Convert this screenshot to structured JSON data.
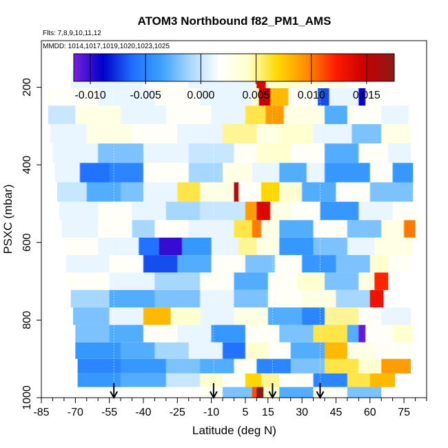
{
  "chart_data": {
    "type": "heatmap",
    "title": "ATOM3 Northbound f82_PM1_AMS",
    "flights_label": "Flts: 7,8,9,10,11,12",
    "dates_label": "MMDD: 1014,1017,1019,1020,1023,1025",
    "xlabel": "Latitude (deg N)",
    "ylabel": "PSXC (mbar)",
    "xlim": [
      -85,
      85
    ],
    "ylim": [
      1000,
      80
    ],
    "x_ticks": [
      -85,
      -70,
      -55,
      -40,
      -25,
      -10,
      5,
      15,
      30,
      45,
      60,
      75
    ],
    "y_ticks": [
      200,
      400,
      600,
      800,
      1000
    ],
    "colorbar": {
      "range": [
        -0.0115,
        0.0175
      ],
      "ticks": [
        -0.01,
        -0.005,
        0.0,
        0.005,
        0.01,
        0.015
      ],
      "tick_labels": [
        "-0.010",
        "-0.005",
        "0.000",
        "0.005",
        "0.010",
        "0.015"
      ],
      "colors": [
        "#7a1fe0",
        "#0000c8",
        "#1e6eff",
        "#3aa0ff",
        "#a8d8ff",
        "#ffffff",
        "#ffffc8",
        "#ffd700",
        "#ff8c00",
        "#ff1a00",
        "#c80000",
        "#8b1a1a"
      ]
    },
    "arrows_lat": [
      -53,
      -9,
      17,
      38
    ],
    "vertical_profiles": [
      {
        "lat": -53,
        "p_top": 960
      },
      {
        "lat": -9,
        "p_top": 960
      },
      {
        "lat": 17,
        "p_top": 960
      },
      {
        "lat": 38,
        "p_top": 960
      }
    ],
    "layers": [
      {
        "p": 180,
        "lat_min": -72,
        "lat_max": 62,
        "segments": [
          [
            -72,
            0.001
          ],
          [
            -40,
            0.002
          ],
          [
            -20,
            0.001
          ],
          [
            10,
            0.014
          ],
          [
            14,
            0.004
          ],
          [
            30,
            0.003
          ],
          [
            50,
            0.002
          ]
        ]
      },
      {
        "p": 225,
        "lat_min": -83,
        "lat_max": 64,
        "segments": [
          [
            -83,
            0.002
          ],
          [
            -60,
            0.001
          ],
          [
            -35,
            0.002
          ],
          [
            -15,
            0.001
          ],
          [
            8,
            0.004
          ],
          [
            11,
            0.015
          ],
          [
            16,
            0.008
          ],
          [
            24,
            0.002
          ],
          [
            37,
            -0.007
          ],
          [
            42,
            0.001
          ],
          [
            55,
            -0.009
          ],
          [
            58,
            0.002
          ]
        ]
      },
      {
        "p": 270,
        "lat_min": -82,
        "lat_max": 77,
        "segments": [
          [
            -82,
            0.0
          ],
          [
            -70,
            0.003
          ],
          [
            -50,
            0.001
          ],
          [
            -30,
            0.002
          ],
          [
            -10,
            0.001
          ],
          [
            5,
            0.006
          ],
          [
            14,
            0.009
          ],
          [
            22,
            0.003
          ],
          [
            40,
            -0.003
          ],
          [
            50,
            0.002
          ],
          [
            65,
            0.001
          ]
        ]
      },
      {
        "p": 320,
        "lat_min": -81,
        "lat_max": 78,
        "segments": [
          [
            -81,
            0.001
          ],
          [
            -65,
            0.003
          ],
          [
            -45,
            0.002
          ],
          [
            -25,
            0.001
          ],
          [
            -5,
            0.005
          ],
          [
            10,
            0.003
          ],
          [
            20,
            0.004
          ],
          [
            35,
            0.001
          ],
          [
            52,
            -0.002
          ],
          [
            65,
            0.003
          ]
        ]
      },
      {
        "p": 370,
        "lat_min": -80,
        "lat_max": 78,
        "segments": [
          [
            -80,
            0.001
          ],
          [
            -60,
            -0.002
          ],
          [
            -40,
            0.001
          ],
          [
            -20,
            0.0
          ],
          [
            0,
            0.002
          ],
          [
            10,
            0.004
          ],
          [
            25,
            0.002
          ],
          [
            40,
            -0.003
          ],
          [
            55,
            0.002
          ],
          [
            68,
            0.001
          ]
        ]
      },
      {
        "p": 420,
        "lat_min": -79,
        "lat_max": 79,
        "segments": [
          [
            -79,
            0.001
          ],
          [
            -68,
            -0.006
          ],
          [
            -55,
            -0.005
          ],
          [
            -40,
            0.002
          ],
          [
            -20,
            -0.001
          ],
          [
            -5,
            0.003
          ],
          [
            8,
            0.001
          ],
          [
            20,
            -0.003
          ],
          [
            32,
            0.001
          ],
          [
            40,
            -0.004
          ],
          [
            60,
            0.002
          ],
          [
            70,
            -0.004
          ]
        ]
      },
      {
        "p": 470,
        "lat_min": -78,
        "lat_max": 79,
        "segments": [
          [
            -78,
            0.0
          ],
          [
            -65,
            -0.003
          ],
          [
            -50,
            -0.002
          ],
          [
            -40,
            0.001
          ],
          [
            -25,
            0.006
          ],
          [
            -15,
            0.003
          ],
          [
            0,
            0.016
          ],
          [
            2,
            0.002
          ],
          [
            12,
            0.007
          ],
          [
            20,
            0.004
          ],
          [
            30,
            -0.003
          ],
          [
            45,
            0.002
          ],
          [
            60,
            -0.002
          ]
        ]
      },
      {
        "p": 520,
        "lat_min": -77,
        "lat_max": 80,
        "segments": [
          [
            -77,
            0.001
          ],
          [
            -60,
            0.002
          ],
          [
            -45,
            0.001
          ],
          [
            -30,
            -0.001
          ],
          [
            -15,
            0.0
          ],
          [
            5,
            0.009
          ],
          [
            10,
            0.014
          ],
          [
            16,
            0.003
          ],
          [
            25,
            0.002
          ],
          [
            38,
            -0.004
          ],
          [
            55,
            0.001
          ],
          [
            70,
            0.002
          ]
        ]
      },
      {
        "p": 565,
        "lat_min": -76,
        "lat_max": 80,
        "segments": [
          [
            -76,
            0.001
          ],
          [
            -60,
            0.002
          ],
          [
            -45,
            -0.001
          ],
          [
            -35,
            0.002
          ],
          [
            -20,
            0.001
          ],
          [
            0,
            0.006
          ],
          [
            8,
            0.01
          ],
          [
            12,
            0.003
          ],
          [
            20,
            -0.003
          ],
          [
            35,
            0.002
          ],
          [
            50,
            -0.002
          ],
          [
            65,
            0.003
          ],
          [
            75,
            0.01
          ]
        ]
      },
      {
        "p": 610,
        "lat_min": -75,
        "lat_max": 79,
        "segments": [
          [
            -75,
            0.002
          ],
          [
            -60,
            0.001
          ],
          [
            -42,
            -0.006
          ],
          [
            -33,
            -0.01
          ],
          [
            -23,
            -0.004
          ],
          [
            -10,
            0.001
          ],
          [
            2,
            0.005
          ],
          [
            10,
            0.003
          ],
          [
            20,
            -0.004
          ],
          [
            35,
            -0.002
          ],
          [
            50,
            0.001
          ],
          [
            62,
            0.003
          ]
        ]
      },
      {
        "p": 655,
        "lat_min": -74,
        "lat_max": 78,
        "segments": [
          [
            -74,
            0.001
          ],
          [
            -55,
            0.002
          ],
          [
            -40,
            -0.007
          ],
          [
            -25,
            -0.003
          ],
          [
            -10,
            0.002
          ],
          [
            5,
            -0.002
          ],
          [
            18,
            0.002
          ],
          [
            30,
            -0.004
          ],
          [
            45,
            -0.002
          ],
          [
            60,
            0.004
          ],
          [
            68,
            0.002
          ]
        ]
      },
      {
        "p": 700,
        "lat_min": -73,
        "lat_max": 68,
        "segments": [
          [
            -73,
            0.002
          ],
          [
            -55,
            0.001
          ],
          [
            -35,
            -0.001
          ],
          [
            -15,
            0.002
          ],
          [
            0,
            -0.003
          ],
          [
            15,
            0.002
          ],
          [
            28,
            0.004
          ],
          [
            40,
            -0.002
          ],
          [
            55,
            0.003
          ],
          [
            62,
            0.012
          ]
        ]
      },
      {
        "p": 745,
        "lat_min": -72,
        "lat_max": 66,
        "segments": [
          [
            -72,
            -0.001
          ],
          [
            -55,
            -0.003
          ],
          [
            -35,
            -0.002
          ],
          [
            -15,
            0.001
          ],
          [
            0,
            -0.002
          ],
          [
            15,
            0.002
          ],
          [
            30,
            0.003
          ],
          [
            45,
            -0.001
          ],
          [
            60,
            0.013
          ]
        ]
      },
      {
        "p": 790,
        "lat_min": -71,
        "lat_max": 78,
        "segments": [
          [
            -71,
            -0.002
          ],
          [
            -55,
            0.001
          ],
          [
            -40,
            0.008
          ],
          [
            -28,
            0.004
          ],
          [
            -15,
            0.001
          ],
          [
            0,
            0.003
          ],
          [
            15,
            -0.003
          ],
          [
            30,
            -0.005
          ],
          [
            40,
            0.005
          ],
          [
            55,
            0.002
          ],
          [
            65,
            0.001
          ]
        ]
      },
      {
        "p": 835,
        "lat_min": -70,
        "lat_max": 79,
        "segments": [
          [
            -70,
            -0.002
          ],
          [
            -55,
            -0.003
          ],
          [
            -40,
            0.002
          ],
          [
            -25,
            0.001
          ],
          [
            -10,
            -0.004
          ],
          [
            5,
            0.002
          ],
          [
            20,
            -0.002
          ],
          [
            35,
            0.006
          ],
          [
            50,
            -0.003
          ],
          [
            55,
            -0.011
          ],
          [
            58,
            0.002
          ],
          [
            70,
            0.004
          ]
        ]
      },
      {
        "p": 880,
        "lat_min": -70,
        "lat_max": 79,
        "segments": [
          [
            -70,
            -0.004
          ],
          [
            -50,
            -0.003
          ],
          [
            -35,
            -0.001
          ],
          [
            -20,
            0.001
          ],
          [
            -5,
            -0.006
          ],
          [
            5,
            0.004
          ],
          [
            15,
            0.002
          ],
          [
            25,
            -0.003
          ],
          [
            40,
            0.008
          ],
          [
            50,
            0.003
          ],
          [
            62,
            0.002
          ]
        ]
      },
      {
        "p": 920,
        "lat_min": -69,
        "lat_max": 78,
        "segments": [
          [
            -69,
            -0.005
          ],
          [
            -50,
            -0.004
          ],
          [
            -30,
            -0.002
          ],
          [
            -15,
            -0.003
          ],
          [
            0,
            0.002
          ],
          [
            10,
            -0.005
          ],
          [
            25,
            -0.002
          ],
          [
            40,
            0.006
          ],
          [
            55,
            0.004
          ],
          [
            65,
            0.009
          ]
        ]
      },
      {
        "p": 955,
        "lat_min": -69,
        "lat_max": 71,
        "segments": [
          [
            -69,
            -0.004
          ],
          [
            -50,
            -0.003
          ],
          [
            -30,
            0.0
          ],
          [
            -15,
            0.004
          ],
          [
            -5,
            0.002
          ],
          [
            5,
            0.007
          ],
          [
            12,
            0.005
          ],
          [
            20,
            0.002
          ],
          [
            35,
            -0.005
          ],
          [
            50,
            0.006
          ],
          [
            60,
            0.008
          ]
        ]
      },
      {
        "p": 990,
        "lat_min": -16,
        "lat_max": 65,
        "segments": [
          [
            -16,
            0.002
          ],
          [
            -5,
            -0.002
          ],
          [
            8,
            0.011
          ],
          [
            10,
            0.018
          ],
          [
            13,
            0.004
          ],
          [
            20,
            -0.003
          ],
          [
            35,
            0.002
          ],
          [
            50,
            -0.002
          ]
        ]
      }
    ]
  }
}
